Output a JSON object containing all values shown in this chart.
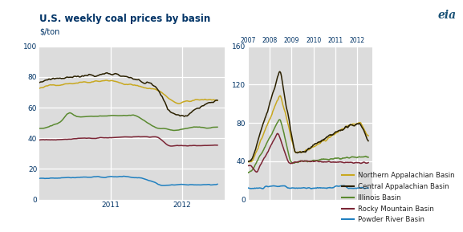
{
  "title": "U.S. weekly coal prices by basin",
  "ylabel_left": "$/ton",
  "colors": {
    "northern_app": "#C8A820",
    "central_app": "#2A2000",
    "illinois": "#5A8A30",
    "rocky_mtn": "#7B2535",
    "powder_river": "#2080C0"
  },
  "legend_labels": [
    "Northern Appalachian Basin",
    "Central Appalachian Basin",
    "Illinois Basin",
    "Rocky Mountain Basin",
    "Powder River Basin"
  ],
  "left_ylim": [
    0,
    100
  ],
  "right_ylim": [
    0,
    160
  ],
  "left_yticks": [
    0,
    20,
    40,
    60,
    80,
    100
  ],
  "right_yticks": [
    0,
    40,
    80,
    120,
    160
  ],
  "background_color": "#DCDCDC",
  "grid_color": "#FFFFFF",
  "title_color": "#003366",
  "axis_label_color": "#003366",
  "tick_color": "#003366"
}
